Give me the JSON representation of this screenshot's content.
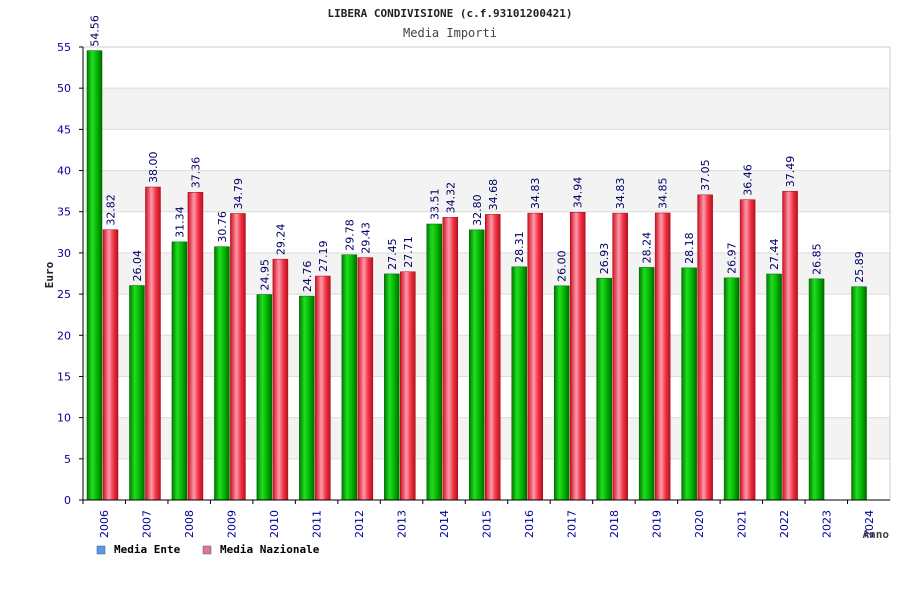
{
  "chart_data": {
    "type": "bar",
    "title": "LIBERA CONDIVISIONE (c.f.93101200421)",
    "subtitle": "Media Importi",
    "xlabel": "Anno",
    "ylabel": "Euro",
    "ylim": [
      0,
      55
    ],
    "yticks": [
      0,
      5,
      10,
      15,
      20,
      25,
      30,
      35,
      40,
      45,
      50,
      55
    ],
    "categories": [
      "2006",
      "2007",
      "2008",
      "2009",
      "2010",
      "2011",
      "2012",
      "2013",
      "2014",
      "2015",
      "2016",
      "2017",
      "2018",
      "2019",
      "2020",
      "2021",
      "2022",
      "2023",
      "2024"
    ],
    "series": [
      {
        "name": "Media Ente",
        "color": "#00aa00",
        "legend_color": "#5599ee",
        "values": [
          54.56,
          26.04,
          31.34,
          30.76,
          24.95,
          24.76,
          29.78,
          27.45,
          33.51,
          32.8,
          28.31,
          26.0,
          26.93,
          28.24,
          28.18,
          26.97,
          27.44,
          26.85,
          25.89
        ],
        "labels": [
          "54.56",
          "26.04",
          "31.34",
          "30.76",
          "24.95",
          "24.76",
          "29.78",
          "27.45",
          "33.51",
          "32.80",
          "28.31",
          "26.00",
          "26.93",
          "28.24",
          "28.18",
          "26.97",
          "27.44",
          "26.85",
          "25.89"
        ]
      },
      {
        "name": "Media Nazionale",
        "color": "#ee2233",
        "legend_color": "#dd7799",
        "values": [
          32.82,
          38.0,
          37.36,
          34.79,
          29.24,
          27.19,
          29.43,
          27.71,
          34.32,
          34.68,
          34.83,
          34.94,
          34.83,
          34.85,
          37.05,
          36.46,
          37.49,
          null,
          null
        ],
        "labels": [
          "32.82",
          "38.00",
          "37.36",
          "34.79",
          "29.24",
          "27.19",
          "29.43",
          "27.71",
          "34.32",
          "34.68",
          "34.83",
          "34.94",
          "34.83",
          "34.85",
          "37.05",
          "36.46",
          "37.49",
          null,
          null
        ]
      }
    ],
    "grid": true,
    "legend_position": "bottom-left"
  }
}
